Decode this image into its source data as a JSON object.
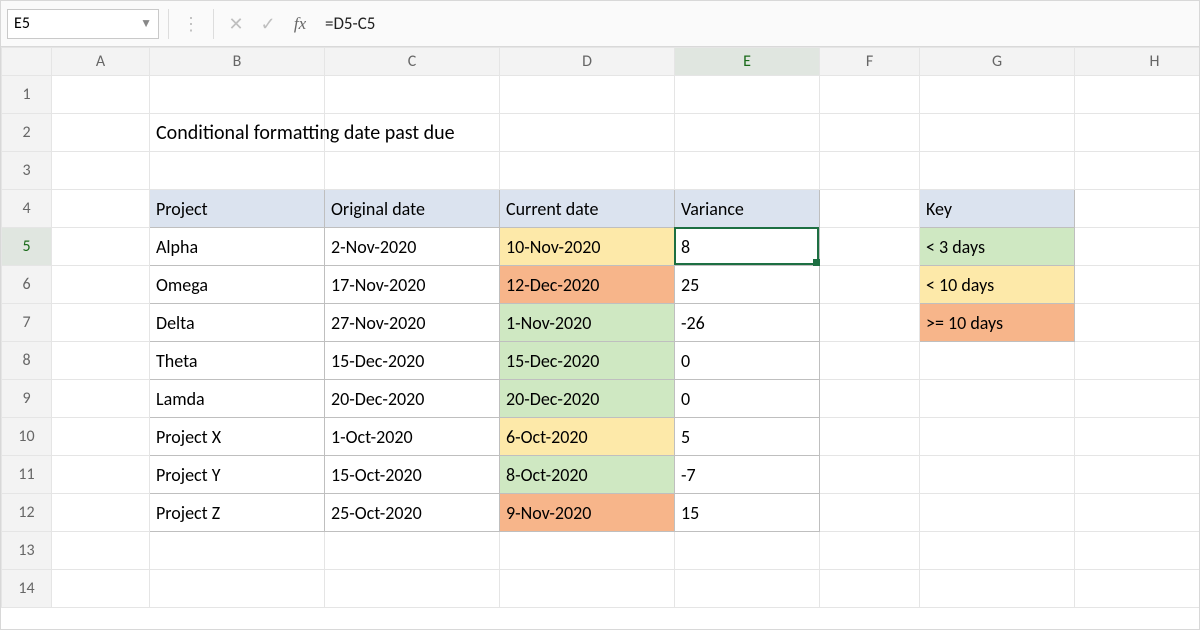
{
  "namebox": "E5",
  "formula": "=D5-C5",
  "columns": [
    "A",
    "B",
    "C",
    "D",
    "E",
    "F",
    "G",
    "H"
  ],
  "col_widths": [
    "50px",
    "98px",
    "175px",
    "175px",
    "175px",
    "145px",
    "100px",
    "155px",
    "160px"
  ],
  "row_count": 14,
  "active_col": "E",
  "active_row": 5,
  "title": "Conditional formatting date past due",
  "table": {
    "headers": [
      "Project",
      "Original date",
      "Current date",
      "Variance"
    ],
    "rows": [
      {
        "project": "Alpha",
        "orig": "2-Nov-2020",
        "curr": "10-Nov-2020",
        "var": "8",
        "curr_bg": "#fde9a9"
      },
      {
        "project": "Omega",
        "orig": "17-Nov-2020",
        "curr": "12-Dec-2020",
        "var": "25",
        "curr_bg": "#f7b58a"
      },
      {
        "project": "Delta",
        "orig": "27-Nov-2020",
        "curr": "1-Nov-2020",
        "var": "-26",
        "curr_bg": "#cfe8c2"
      },
      {
        "project": "Theta",
        "orig": "15-Dec-2020",
        "curr": "15-Dec-2020",
        "var": "0",
        "curr_bg": "#cfe8c2"
      },
      {
        "project": "Lamda",
        "orig": "20-Dec-2020",
        "curr": "20-Dec-2020",
        "var": "0",
        "curr_bg": "#cfe8c2"
      },
      {
        "project": "Project X",
        "orig": "1-Oct-2020",
        "curr": "6-Oct-2020",
        "var": "5",
        "curr_bg": "#fde9a9"
      },
      {
        "project": "Project Y",
        "orig": "15-Oct-2020",
        "curr": "8-Oct-2020",
        "var": "-7",
        "curr_bg": "#cfe8c2"
      },
      {
        "project": "Project Z",
        "orig": "25-Oct-2020",
        "curr": "9-Nov-2020",
        "var": "15",
        "curr_bg": "#f7b58a"
      }
    ]
  },
  "key": {
    "header": "Key",
    "rows": [
      {
        "label": "< 3 days",
        "bg": "#cfe8c2"
      },
      {
        "label": "< 10 days",
        "bg": "#fde9a9"
      },
      {
        "label": ">= 10 days",
        "bg": "#f7b58a"
      }
    ]
  },
  "colors": {
    "header_bg": "#dbe3ef",
    "grid_border": "#e5e5e5",
    "active_outline": "#1d6f42"
  }
}
